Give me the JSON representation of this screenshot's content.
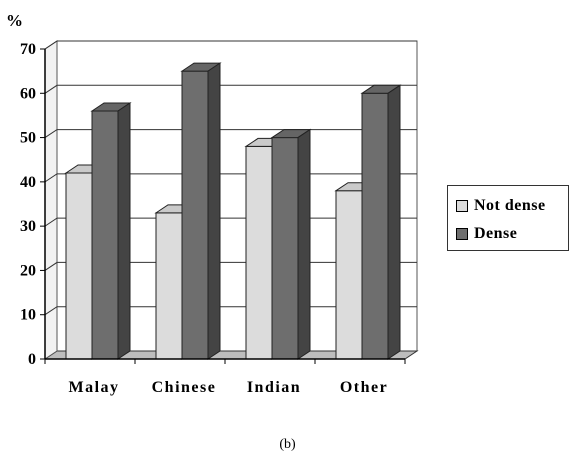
{
  "chart_data": {
    "type": "bar",
    "ylabel": "%",
    "ylim": [
      0,
      70
    ],
    "yticks": [
      0,
      10,
      20,
      30,
      40,
      50,
      60,
      70
    ],
    "categories": [
      "Malay",
      "Chinese",
      "Indian",
      "Other"
    ],
    "series": [
      {
        "name": "Not dense",
        "values": [
          42,
          33,
          48,
          38
        ],
        "color": "#dcdcdc"
      },
      {
        "name": "Dense",
        "values": [
          56,
          65,
          50,
          60
        ],
        "color": "#6e6e6e"
      }
    ],
    "grid": true,
    "legend_position": "right",
    "style": "3d-bar"
  },
  "caption": "(b)"
}
